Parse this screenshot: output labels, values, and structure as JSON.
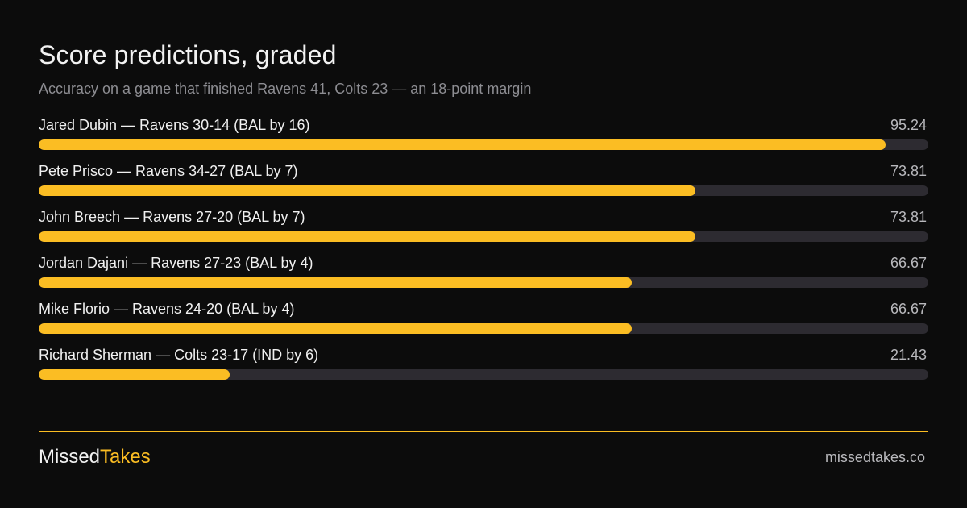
{
  "header": {
    "title": "Score predictions, graded",
    "subtitle": "Accuracy on a game that finished Ravens 41, Colts 23 — an 18-point margin"
  },
  "chart_data": {
    "type": "bar",
    "orientation": "horizontal",
    "title": "Score predictions, graded",
    "subtitle": "Accuracy on a game that finished Ravens 41, Colts 23 — an 18-point margin",
    "categories": [
      "Jared Dubin — Ravens 30-14 (BAL by 16)",
      "Pete Prisco — Ravens 34-27 (BAL by 7)",
      "John Breech — Ravens 27-20 (BAL by 7)",
      "Jordan Dajani — Ravens 27-23 (BAL by 4)",
      "Mike Florio — Ravens 24-20 (BAL by 4)",
      "Richard Sherman — Colts 23-17 (IND by 6)"
    ],
    "values": [
      95.24,
      73.81,
      73.81,
      66.67,
      66.67,
      21.43
    ],
    "value_labels": [
      "95.24",
      "73.81",
      "73.81",
      "66.67",
      "66.67",
      "21.43"
    ],
    "xlim": [
      0,
      100
    ],
    "grid": false,
    "colors": {
      "bar": "#fbbd23",
      "track": "#2d2b31"
    }
  },
  "footer": {
    "brand_part1": "Missed",
    "brand_part2": "Takes",
    "site": "missedtakes.co",
    "accent_color": "#fbbd23"
  }
}
